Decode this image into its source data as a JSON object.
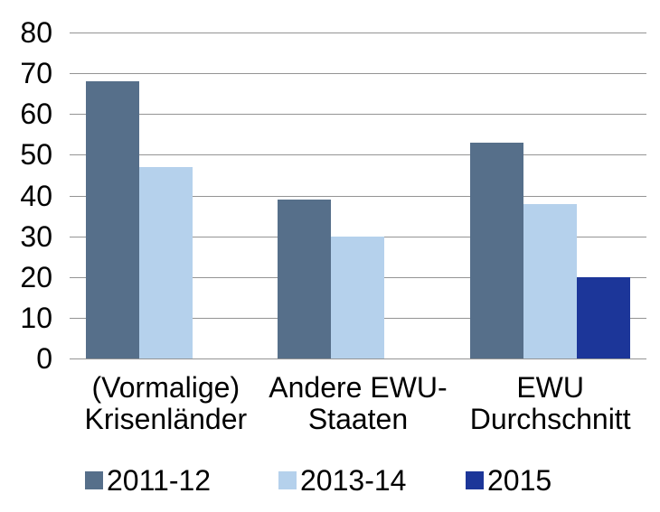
{
  "chart_data": {
    "type": "bar",
    "title": "",
    "categories": [
      "(Vormalige) Krisenländer",
      "Andere EWU-Staaten",
      "EWU Durchschnitt"
    ],
    "category_label_lines": [
      [
        "(Vormalige)",
        "Krisenländer"
      ],
      [
        "Andere EWU-",
        "Staaten"
      ],
      [
        "EWU",
        "Durchschnitt"
      ]
    ],
    "series": [
      {
        "name": "2011-12",
        "color": "#566F8A",
        "values": [
          68,
          39,
          53
        ]
      },
      {
        "name": "2013-14",
        "color": "#B5D1EC",
        "values": [
          47,
          30,
          38
        ]
      },
      {
        "name": "2015",
        "color": "#1C3699",
        "values": [
          null,
          null,
          20
        ]
      }
    ],
    "ylim": [
      0,
      80
    ],
    "ytick_step": 10,
    "yticks": [
      0,
      10,
      20,
      30,
      40,
      50,
      60,
      70,
      80
    ],
    "grid": true,
    "legend_position": "bottom",
    "gridline_color": "#949494",
    "axis_line_color": "#949494",
    "background_color": "#FFFFFF",
    "text_color": "#000000"
  }
}
